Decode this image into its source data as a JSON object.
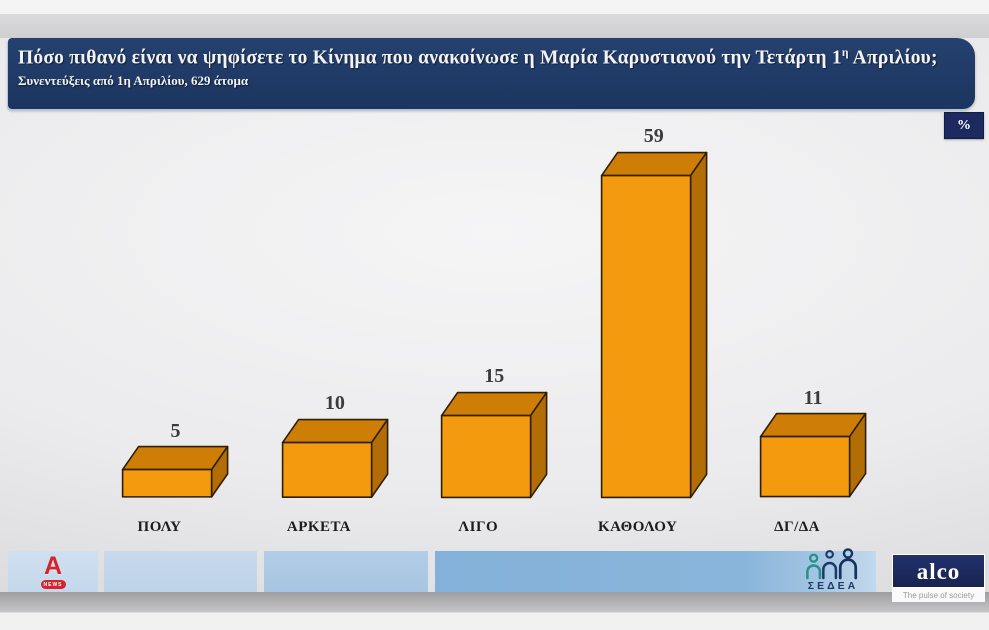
{
  "header": {
    "title_pre": "Πόσο πιθανό είναι να ψηφίσετε το Κίνημα που ανακοίνωσε η Μαρία Καρυστιανού την Τετάρτη 1",
    "title_sup": "η",
    "title_post": " Απριλίου;",
    "subtitle": "Συνεντεύξεις από 1η Απριλίου, 629 άτομα"
  },
  "unit_badge": "%",
  "chart_data": {
    "type": "bar",
    "title": "Πόσο πιθανό είναι να ψηφίσετε το Κίνημα που ανακοίνωσε η Μαρία Καρυστιανού την Τετάρτη 1η Απριλίου;",
    "subtitle": "Συνεντεύξεις από 1η Απριλίου, 629 άτομα",
    "unit": "%",
    "categories": [
      "ΠΟΛΥ",
      "ΑΡΚΕΤΑ",
      "ΛΙΓΟ",
      "ΚΑΘΟΛΟΥ",
      "ΔΓ/ΔΑ"
    ],
    "values": [
      5,
      10,
      15,
      59,
      11
    ],
    "value_labels_shown": true,
    "ylim": [
      0,
      60
    ],
    "grid": false,
    "legend": false,
    "style": "3d-orange-boxes"
  },
  "colors": {
    "header_navy": "#1e3a66",
    "badge_navy": "#1c2a60",
    "bar_front": "#F39A0E",
    "bar_top": "#CE7E07",
    "bar_side": "#B26D06",
    "bar_outline": "#2e1f06",
    "value_label": "#3b3b3d",
    "alpha_red": "#d5232e",
    "sedea_teal": "#2a8f8c",
    "sedea_navy": "#1d3a66",
    "alco_navy": "#1b2a66"
  },
  "footer": {
    "alpha_news_label": "NEWS",
    "sedea_label": "ΣΕΔΕΑ",
    "alco_label": "alco",
    "alco_tagline": "The pulse of society"
  }
}
